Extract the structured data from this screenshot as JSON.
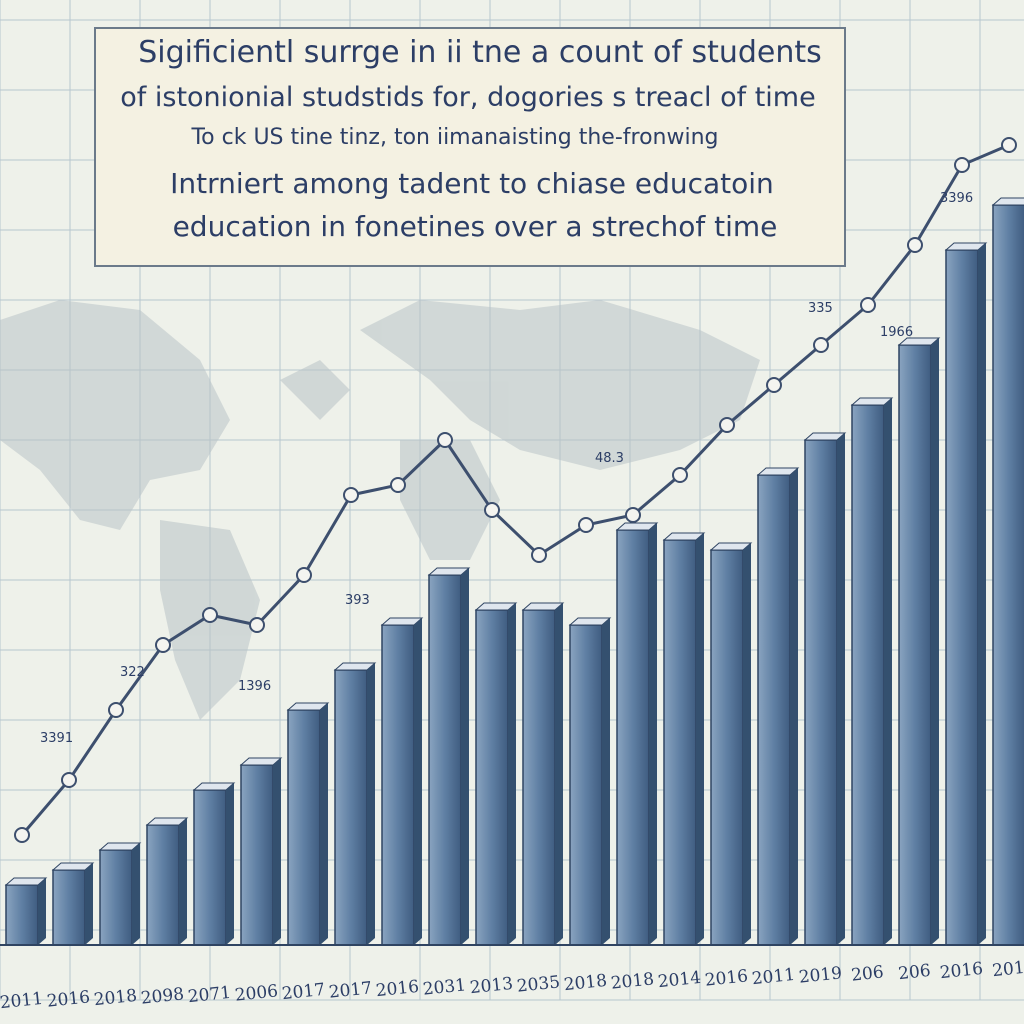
{
  "chart_data": {
    "type": "bar",
    "title_lines": [
      "Sigificientl surrge in ii tne a count of students",
      "of istonionial studstids for, dogories s treacl of time",
      "To ck US tine tinz, ton iimanaisting the-fronwing",
      "Intrniert among tadent to chiase educatoin",
      "education   in fonetines over a strechof time"
    ],
    "categories": [
      "2011",
      "2016",
      "2018",
      "2098",
      "2071",
      "2006",
      "2017",
      "2017",
      "2016",
      "2031",
      "2013",
      "2035",
      "2018",
      "2018",
      "2014",
      "2016",
      "2011",
      "2019",
      "206",
      "206",
      "2016",
      "201"
    ],
    "series": [
      {
        "color": "#5f7fa3",
        "values": [
          60,
          75,
          95,
          120,
          155,
          180,
          235,
          275,
          320,
          370,
          335,
          335,
          320,
          415,
          405,
          395,
          470,
          505,
          540,
          600,
          695,
          740
        ]
      },
      {
        "color": "#3d4f6e",
        "values": [
          110,
          165,
          235,
          300,
          330,
          320,
          370,
          450,
          460,
          505,
          435,
          390,
          420,
          430,
          470,
          520,
          560,
          600,
          640,
          700,
          780,
          800
        ]
      }
    ],
    "annotations": [
      "3391",
      "322",
      "393",
      "1396",
      "48.3",
      "335",
      "1966",
      "3396"
    ]
  }
}
